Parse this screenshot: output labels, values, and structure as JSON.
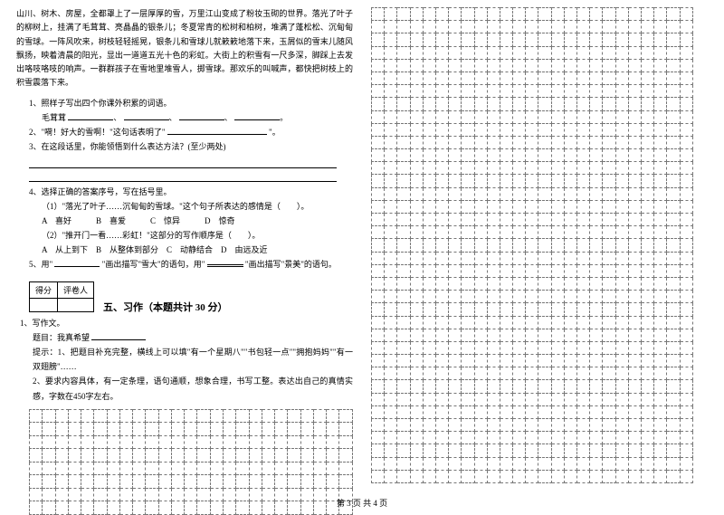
{
  "passage": "山川、树木、房屋，全都罩上了一层厚厚的雪，万里江山变成了粉妆玉砌的世界。落光了叶子的柳树上，挂满了毛茸茸、亮晶晶的银条儿；冬夏常青的松树和柏树，堆满了蓬松松、沉甸甸的雪球。一阵风吹来，树枝轻轻摇晃，银条儿和雪球儿就簌簌地落下来，玉屑似的雪末儿随风飘扬，映着清晨的阳光，显出一道道五光十色的彩虹。大街上的积雪有一尺多深，脚踩上去发出咯吱咯吱的响声。一群群孩子在雪地里堆雪人，掷雪球。那欢乐的叫喊声，都快把树枝上的积雪震落下来。",
  "q1": "1、照样子写出四个你课外积累的词语。",
  "q1_sample": "毛茸茸",
  "q2": "2、\"嗬！好大的雪啊！\"这句话表明了\"",
  "q2_tail": "\"。",
  "q3": "3、在这段话里，你能领悟到什么表达方法？(至少两处)",
  "q4": "4、选择正确的答案序号，写在括号里。",
  "q4_1": "（1）\"落光了叶子……沉甸甸的雪球。\"这个句子所表达的感情是（　　）。",
  "q4_1_opts": "A　喜好　　　B　喜爱　　　C　惊异　　　D　惊奇",
  "q4_2": "（2）\"推开门一看……彩虹！\"这部分的写作顺序是（　　）。",
  "q4_2_opts": "A　从上到下　B　从整体到部分　C　动静结合　D　由远及近",
  "q5_a": "5、用\"",
  "q5_b": "\"画出描写\"雪大\"的语句，用\"",
  "q5_c": "\"画出描写\"景美\"的语句。",
  "score_h1": "得分",
  "score_h2": "评卷人",
  "section5": "五、习作（本题共计 30 分）",
  "w1": "1、写作文。",
  "w2": "题目：我真希望",
  "w3": "提示：1、把题目补充完整，横线上可以填\"有一个星期八\"\"书包轻一点\"\"拥抱妈妈\"\"有一双翅膀\"……",
  "w4": "2、要求内容具体，有一定条理，语句通顺，想象合理，书写工整。表达出自己的真情实感，字数在450字左右。",
  "footer": "第 3 页 共 4 页",
  "grid_left": {
    "rows": 8,
    "cols": 25
  },
  "grid_right": {
    "rows": 37,
    "cols": 25
  }
}
